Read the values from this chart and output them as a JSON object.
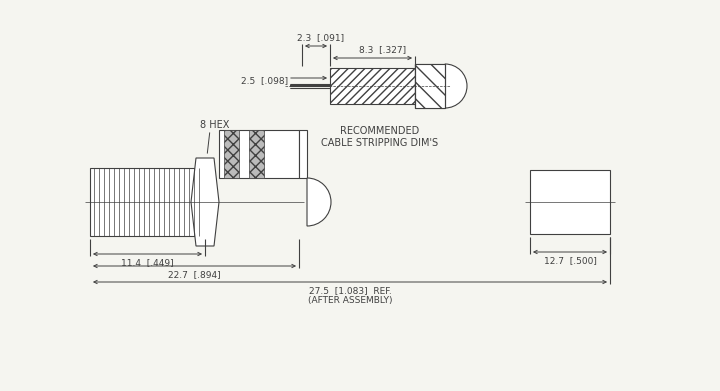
{
  "bg_color": "#f5f5f0",
  "line_color": "#404040",
  "hatch_color": "#808080",
  "title_text": "",
  "cable_label": "RECOMMENDED\nCABLE STRIPPING DIM'S",
  "hex_label": "8 HEX",
  "dim1_label": "2.3  [.091]",
  "dim2_label": "2.5  [.098]",
  "dim3_label": "8.3  [.327]",
  "dim4_label": "11.4  [.449]",
  "dim5_label": "22.7  [.894]",
  "dim6_label": "27.5  [1.083]  REF.\n(AFTER ASSEMBLY)",
  "dim7_label": "12.7  [.500]"
}
